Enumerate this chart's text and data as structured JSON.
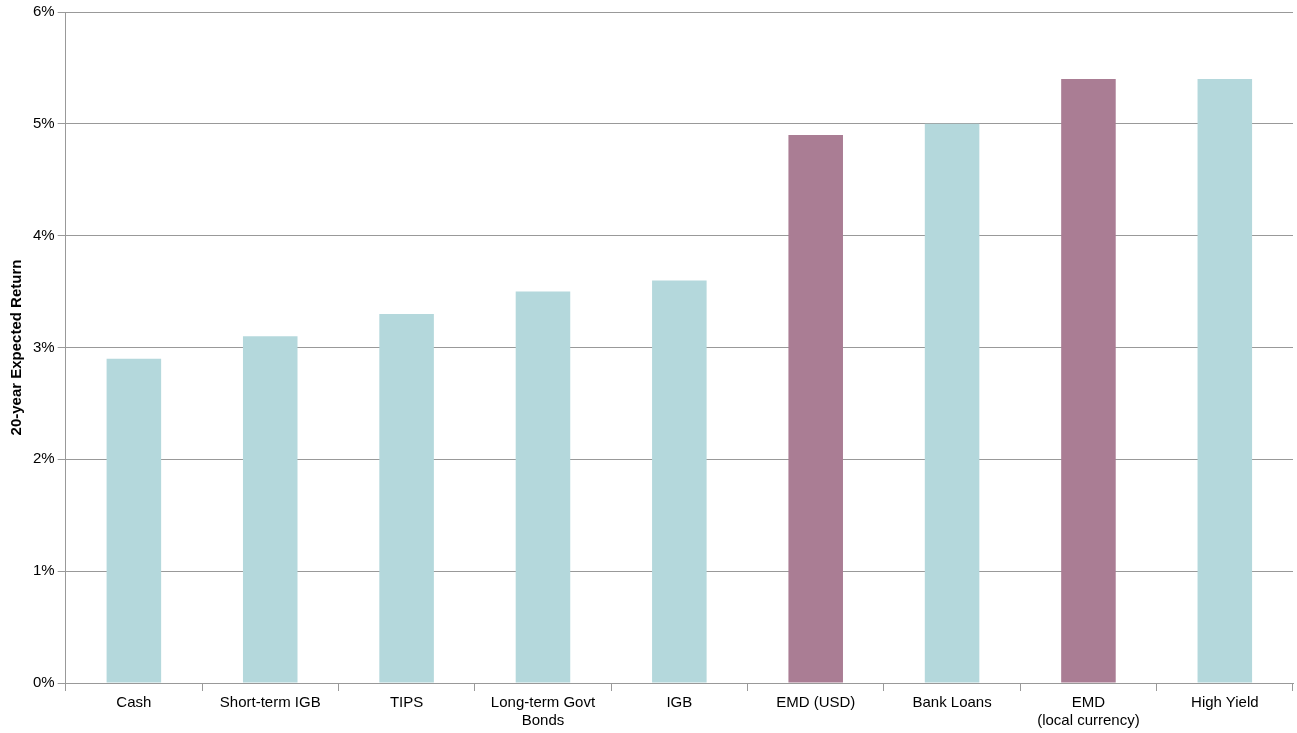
{
  "chart_data": {
    "type": "bar",
    "ylabel": "20-year Expected Return",
    "categories": [
      "Cash",
      "Short-term IGB",
      "TIPS",
      "Long-term Govt\nBonds",
      "IGB",
      "EMD (USD)",
      "Bank Loans",
      "EMD\n(local currency)",
      "High Yield"
    ],
    "values": [
      2.9,
      3.1,
      3.3,
      3.5,
      3.6,
      4.9,
      5.0,
      5.4,
      5.4
    ],
    "colors": [
      "#b4d8dc",
      "#b4d8dc",
      "#b4d8dc",
      "#b4d8dc",
      "#b4d8dc",
      "#aa7d94",
      "#b4d8dc",
      "#aa7d94",
      "#b4d8dc"
    ],
    "ylim": [
      0,
      6
    ],
    "yticks": [
      {
        "value": 0,
        "label": "0%"
      },
      {
        "value": 1,
        "label": "1%"
      },
      {
        "value": 2,
        "label": "2%"
      },
      {
        "value": 3,
        "label": "3%"
      },
      {
        "value": 4,
        "label": "4%"
      },
      {
        "value": 5,
        "label": "5%"
      },
      {
        "value": 6,
        "label": "6%"
      }
    ],
    "grid": "y",
    "legend": false
  }
}
